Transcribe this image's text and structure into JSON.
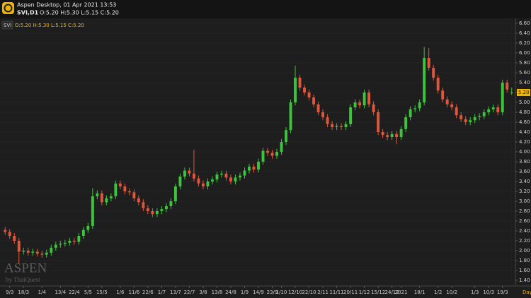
{
  "header": {
    "title": "Aspen Desktop, 01 Apr 2021 13:53",
    "symbol": "SVI,D1",
    "ohlc": "O:5.20 H:5.30 L:5.15 C:5.20"
  },
  "watermark": {
    "brand": "ASPEN",
    "by": "by ThaiQuest"
  },
  "chart_data": {
    "type": "candlestick",
    "period_label": "Day",
    "up_color": "#3cc43c",
    "down_color": "#e0563c",
    "grid": true,
    "ylim": [
      1.3,
      6.7
    ],
    "yticks": [
      {
        "value": 1.4,
        "label": "1.40"
      },
      {
        "value": 1.6,
        "label": "1.60"
      },
      {
        "value": 1.8,
        "label": "1.80"
      },
      {
        "value": 2.0,
        "label": "2.00"
      },
      {
        "value": 2.2,
        "label": "2.20"
      },
      {
        "value": 2.4,
        "label": "2.40"
      },
      {
        "value": 2.6,
        "label": "2.60"
      },
      {
        "value": 2.8,
        "label": "2.80"
      },
      {
        "value": 3.0,
        "label": "3.00"
      },
      {
        "value": 3.2,
        "label": "3.20"
      },
      {
        "value": 3.4,
        "label": "3.40"
      },
      {
        "value": 3.6,
        "label": "3.60"
      },
      {
        "value": 3.8,
        "label": "3.80"
      },
      {
        "value": 4.0,
        "label": "4.00"
      },
      {
        "value": 4.2,
        "label": "4.20"
      },
      {
        "value": 4.4,
        "label": "4.40"
      },
      {
        "value": 4.6,
        "label": "4.60"
      },
      {
        "value": 4.8,
        "label": "4.80"
      },
      {
        "value": 5.0,
        "label": "5.00"
      },
      {
        "value": 5.2,
        "label": "5.20"
      },
      {
        "value": 5.4,
        "label": "5.40"
      },
      {
        "value": 5.6,
        "label": "5.60"
      },
      {
        "value": 5.8,
        "label": "5.80"
      },
      {
        "value": 6.0,
        "label": "6.00"
      },
      {
        "value": 6.2,
        "label": "6.20"
      },
      {
        "value": 6.4,
        "label": "6.40"
      },
      {
        "value": 6.6,
        "label": "6.60"
      }
    ],
    "last_price": {
      "value": 5.2,
      "label": "5.20"
    },
    "legend_ohlc": "O:5.20 H:5.30 L:5.15 C:5.20",
    "categories": [
      null,
      "9/3",
      null,
      null,
      "18/3",
      null,
      null,
      null,
      "1/4",
      null,
      null,
      null,
      "13/4",
      null,
      null,
      "22/4",
      null,
      null,
      "5/5",
      null,
      null,
      "15/5",
      null,
      null,
      null,
      "1/6",
      null,
      null,
      "11/6",
      null,
      null,
      "22/6",
      null,
      null,
      "1/7",
      null,
      null,
      "13/7",
      null,
      null,
      "22/7",
      null,
      null,
      "3/8",
      null,
      null,
      "13/8",
      null,
      null,
      "24/8",
      null,
      null,
      "1/9",
      null,
      null,
      "14/9",
      null,
      null,
      "23/9",
      null,
      "1/10",
      null,
      null,
      "12/10",
      null,
      null,
      "22/10",
      null,
      null,
      "2/11",
      null,
      null,
      "11/11",
      null,
      null,
      "20/11",
      null,
      null,
      "1/12",
      null,
      null,
      "15/12",
      null,
      null,
      "24/12",
      null,
      "2021",
      null,
      null,
      null,
      "18/1",
      null,
      null,
      null,
      "1/2",
      null,
      null,
      "10/2",
      null,
      null,
      null,
      null,
      "1/3",
      null,
      null,
      "10/3",
      null,
      null,
      "19/3",
      null,
      null
    ],
    "series": [
      {
        "name": "SVI",
        "open": [
          2.42,
          2.38,
          2.3,
          2.2,
          1.98,
          2.0,
          1.96,
          1.98,
          1.94,
          1.92,
          1.96,
          2.06,
          2.12,
          2.14,
          2.16,
          2.2,
          2.18,
          2.3,
          2.42,
          2.5,
          3.1,
          3.16,
          2.98,
          3.06,
          3.1,
          3.36,
          3.3,
          3.2,
          3.18,
          3.06,
          2.98,
          2.86,
          2.8,
          2.74,
          2.8,
          2.84,
          2.9,
          3.0,
          3.3,
          3.5,
          3.62,
          3.56,
          3.46,
          3.36,
          3.3,
          3.4,
          3.44,
          3.54,
          3.56,
          3.48,
          3.4,
          3.48,
          3.52,
          3.62,
          3.7,
          3.64,
          3.8,
          4.02,
          3.98,
          3.92,
          4.0,
          4.2,
          4.44,
          5.0,
          5.5,
          5.3,
          5.2,
          5.1,
          4.96,
          4.8,
          4.7,
          4.56,
          4.5,
          4.52,
          4.5,
          4.56,
          4.9,
          5.0,
          4.94,
          5.2,
          4.96,
          4.8,
          4.4,
          4.34,
          4.3,
          4.36,
          4.3,
          4.46,
          4.7,
          4.86,
          4.88,
          5.0,
          5.9,
          5.7,
          5.5,
          5.24,
          5.06,
          4.96,
          4.9,
          4.74,
          4.66,
          4.6,
          4.64,
          4.7,
          4.72,
          4.8,
          4.86,
          4.9,
          4.8,
          5.4,
          5.2
        ],
        "high": [
          2.48,
          2.44,
          2.36,
          2.26,
          2.06,
          2.06,
          2.04,
          2.04,
          2.0,
          2.02,
          2.12,
          2.18,
          2.2,
          2.22,
          2.26,
          2.26,
          2.36,
          2.48,
          2.56,
          3.26,
          3.22,
          3.22,
          3.12,
          3.16,
          3.42,
          3.42,
          3.36,
          3.26,
          3.24,
          3.12,
          3.04,
          2.92,
          2.86,
          2.86,
          2.9,
          2.96,
          3.06,
          3.36,
          3.56,
          3.68,
          3.68,
          4.04,
          3.52,
          3.42,
          3.46,
          3.5,
          3.6,
          3.62,
          3.62,
          3.54,
          3.54,
          3.58,
          3.68,
          3.76,
          3.76,
          3.86,
          4.08,
          4.08,
          4.04,
          4.06,
          4.26,
          4.5,
          5.06,
          5.74,
          5.56,
          5.36,
          5.26,
          5.16,
          5.02,
          4.86,
          4.76,
          4.62,
          4.58,
          4.58,
          4.62,
          4.96,
          5.06,
          5.06,
          5.26,
          5.26,
          5.02,
          4.86,
          4.46,
          4.4,
          4.42,
          4.42,
          4.52,
          4.76,
          4.92,
          4.94,
          5.06,
          6.12,
          6.1,
          5.76,
          5.56,
          5.3,
          5.12,
          5.02,
          4.96,
          4.8,
          4.72,
          4.7,
          4.76,
          4.78,
          4.86,
          4.92,
          4.96,
          4.96,
          5.46,
          5.46,
          5.3
        ],
        "low": [
          2.32,
          2.24,
          2.14,
          1.74,
          1.92,
          1.9,
          1.9,
          1.88,
          1.86,
          1.86,
          1.9,
          2.0,
          2.06,
          2.08,
          2.1,
          2.12,
          2.12,
          2.24,
          2.36,
          2.44,
          3.04,
          2.92,
          2.92,
          3.0,
          3.04,
          3.24,
          3.14,
          3.12,
          3.0,
          2.92,
          2.8,
          2.74,
          2.68,
          2.68,
          2.74,
          2.78,
          2.84,
          2.94,
          3.24,
          3.44,
          3.5,
          3.4,
          3.3,
          3.24,
          3.24,
          3.34,
          3.38,
          3.48,
          3.42,
          3.34,
          3.34,
          3.42,
          3.46,
          3.56,
          3.58,
          3.58,
          3.74,
          3.92,
          3.86,
          3.86,
          3.94,
          4.14,
          4.38,
          4.94,
          5.24,
          5.14,
          5.04,
          4.9,
          4.74,
          4.64,
          4.5,
          4.44,
          4.44,
          4.44,
          4.44,
          4.5,
          4.84,
          4.88,
          4.88,
          4.9,
          4.74,
          4.34,
          4.28,
          4.24,
          4.24,
          4.16,
          4.24,
          4.4,
          4.64,
          4.8,
          4.82,
          4.94,
          5.64,
          5.44,
          5.18,
          5.0,
          4.9,
          4.84,
          4.68,
          4.6,
          4.54,
          4.54,
          4.58,
          4.64,
          4.66,
          4.74,
          4.8,
          4.74,
          4.74,
          5.2,
          5.15
        ],
        "close": [
          2.38,
          2.3,
          2.2,
          1.98,
          2.0,
          1.96,
          1.98,
          1.94,
          1.92,
          1.96,
          2.06,
          2.12,
          2.14,
          2.16,
          2.2,
          2.18,
          2.3,
          2.42,
          2.5,
          3.1,
          3.16,
          2.98,
          3.06,
          3.1,
          3.36,
          3.3,
          3.2,
          3.18,
          3.06,
          2.98,
          2.86,
          2.8,
          2.74,
          2.8,
          2.84,
          2.9,
          3.0,
          3.3,
          3.5,
          3.62,
          3.56,
          3.46,
          3.36,
          3.3,
          3.4,
          3.44,
          3.54,
          3.56,
          3.48,
          3.4,
          3.48,
          3.52,
          3.62,
          3.7,
          3.64,
          3.8,
          4.02,
          3.98,
          3.92,
          4.0,
          4.2,
          4.44,
          5.0,
          5.5,
          5.3,
          5.2,
          5.1,
          4.96,
          4.8,
          4.7,
          4.56,
          4.5,
          4.52,
          4.5,
          4.56,
          4.9,
          5.0,
          4.94,
          5.2,
          4.96,
          4.8,
          4.4,
          4.34,
          4.3,
          4.36,
          4.3,
          4.46,
          4.7,
          4.86,
          4.88,
          5.0,
          5.9,
          5.7,
          5.5,
          5.24,
          5.06,
          4.96,
          4.9,
          4.74,
          4.66,
          4.6,
          4.64,
          4.7,
          4.72,
          4.8,
          4.86,
          4.9,
          4.8,
          5.4,
          5.26,
          5.2
        ]
      }
    ]
  }
}
